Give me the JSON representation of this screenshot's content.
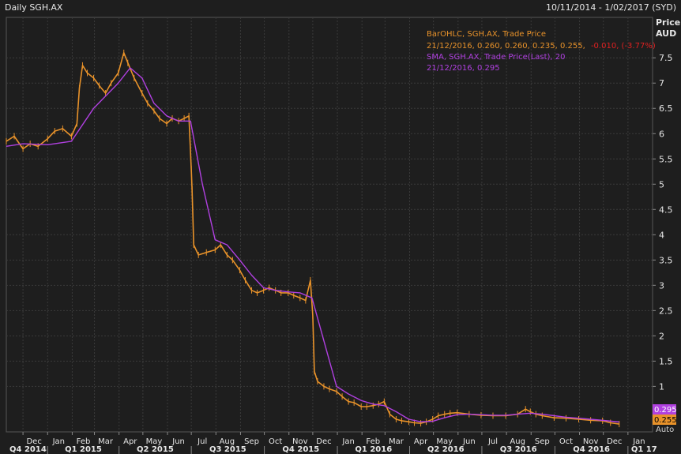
{
  "header": {
    "title": "Daily SGH.AX",
    "date_range": "10/11/2014 - 1/02/2017 (SYD)"
  },
  "axis": {
    "price_label": "Price",
    "unit_label": "AUD",
    "auto_label": "Auto"
  },
  "legend": {
    "ohlc_title": "BarOHLC, SGH.AX, Trade Price",
    "ohlc_values": "21/12/2016, 0.260, 0.260, 0.235, 0.255,",
    "ohlc_change": "-0.010, (-3.77%)",
    "sma_title": "SMA, SGH.AX, Trade Price(Last),  20",
    "sma_values": "21/12/2016, 0.295"
  },
  "colors": {
    "background": "#1e1e1e",
    "ohlc": "#e8922a",
    "sma": "#b040e0",
    "change_negative": "#e02020",
    "grid": "#3a3a3a",
    "text": "#e6e6e6"
  },
  "chart_data": {
    "type": "line",
    "title": "Daily SGH.AX",
    "ylabel": "Price AUD",
    "ylim": [
      0.1,
      8.3
    ],
    "y_ticks": [
      1,
      1.5,
      2,
      2.5,
      3,
      3.5,
      4,
      4.5,
      5,
      5.5,
      6,
      6.5,
      7,
      7.5
    ],
    "grid": true,
    "legend_position": "top-right",
    "month_ticks": [
      "Dec",
      "Jan",
      "Feb",
      "Mar",
      "Apr",
      "May",
      "Jun",
      "Jul",
      "Aug",
      "Sep",
      "Oct",
      "Nov",
      "Dec",
      "Jan",
      "Feb",
      "Mar",
      "Apr",
      "May",
      "Jun",
      "Jul",
      "Aug",
      "Sep",
      "Oct",
      "Nov",
      "Dec",
      "Jan"
    ],
    "quarter_ticks": [
      "Q4 2014",
      "Q1 2015",
      "Q2 2015",
      "Q3 2015",
      "Q4 2015",
      "Q1 2016",
      "Q2 2016",
      "Q3 2016",
      "Q4 2016",
      "Q1 17"
    ],
    "last_values": {
      "sma": "0.295",
      "price": "0.255"
    },
    "series": [
      {
        "name": "BarOHLC, SGH.AX, Trade Price",
        "style": "ohlc",
        "points": [
          [
            "2014-11-10",
            5.85
          ],
          [
            "2014-11-20",
            5.95
          ],
          [
            "2014-12-01",
            5.7
          ],
          [
            "2014-12-10",
            5.8
          ],
          [
            "2014-12-20",
            5.75
          ],
          [
            "2015-01-01",
            5.9
          ],
          [
            "2015-01-10",
            6.05
          ],
          [
            "2015-01-20",
            6.1
          ],
          [
            "2015-01-31",
            5.95
          ],
          [
            "2015-02-07",
            6.2
          ],
          [
            "2015-02-10",
            6.9
          ],
          [
            "2015-02-14",
            7.35
          ],
          [
            "2015-02-20",
            7.2
          ],
          [
            "2015-02-28",
            7.1
          ],
          [
            "2015-03-07",
            6.95
          ],
          [
            "2015-03-15",
            6.8
          ],
          [
            "2015-03-22",
            7.0
          ],
          [
            "2015-03-31",
            7.2
          ],
          [
            "2015-04-07",
            7.6
          ],
          [
            "2015-04-12",
            7.4
          ],
          [
            "2015-04-20",
            7.1
          ],
          [
            "2015-04-30",
            6.8
          ],
          [
            "2015-05-07",
            6.6
          ],
          [
            "2015-05-15",
            6.45
          ],
          [
            "2015-05-22",
            6.3
          ],
          [
            "2015-05-31",
            6.2
          ],
          [
            "2015-06-07",
            6.3
          ],
          [
            "2015-06-15",
            6.25
          ],
          [
            "2015-06-22",
            6.3
          ],
          [
            "2015-06-28",
            6.35
          ],
          [
            "2015-07-01",
            5.3
          ],
          [
            "2015-07-02",
            4.9
          ],
          [
            "2015-07-04",
            3.8
          ],
          [
            "2015-07-10",
            3.6
          ],
          [
            "2015-07-20",
            3.65
          ],
          [
            "2015-07-31",
            3.7
          ],
          [
            "2015-08-07",
            3.8
          ],
          [
            "2015-08-15",
            3.6
          ],
          [
            "2015-08-22",
            3.5
          ],
          [
            "2015-08-31",
            3.3
          ],
          [
            "2015-09-07",
            3.1
          ],
          [
            "2015-09-15",
            2.9
          ],
          [
            "2015-09-22",
            2.85
          ],
          [
            "2015-09-30",
            2.9
          ],
          [
            "2015-10-07",
            2.95
          ],
          [
            "2015-10-15",
            2.9
          ],
          [
            "2015-10-22",
            2.85
          ],
          [
            "2015-10-31",
            2.85
          ],
          [
            "2015-11-07",
            2.8
          ],
          [
            "2015-11-15",
            2.75
          ],
          [
            "2015-11-22",
            2.7
          ],
          [
            "2015-11-28",
            3.1
          ],
          [
            "2015-12-01",
            2.4
          ],
          [
            "2015-12-03",
            1.3
          ],
          [
            "2015-12-07",
            1.1
          ],
          [
            "2015-12-15",
            1.0
          ],
          [
            "2015-12-22",
            0.95
          ],
          [
            "2015-12-31",
            0.9
          ],
          [
            "2016-01-07",
            0.8
          ],
          [
            "2016-01-15",
            0.7
          ],
          [
            "2016-01-22",
            0.68
          ],
          [
            "2016-01-31",
            0.6
          ],
          [
            "2016-02-07",
            0.6
          ],
          [
            "2016-02-15",
            0.62
          ],
          [
            "2016-02-22",
            0.65
          ],
          [
            "2016-02-29",
            0.7
          ],
          [
            "2016-03-07",
            0.45
          ],
          [
            "2016-03-15",
            0.35
          ],
          [
            "2016-03-22",
            0.32
          ],
          [
            "2016-03-31",
            0.3
          ],
          [
            "2016-04-07",
            0.28
          ],
          [
            "2016-04-15",
            0.27
          ],
          [
            "2016-04-22",
            0.3
          ],
          [
            "2016-04-30",
            0.35
          ],
          [
            "2016-05-07",
            0.42
          ],
          [
            "2016-05-15",
            0.45
          ],
          [
            "2016-05-22",
            0.47
          ],
          [
            "2016-05-31",
            0.48
          ],
          [
            "2016-06-15",
            0.45
          ],
          [
            "2016-06-30",
            0.43
          ],
          [
            "2016-07-15",
            0.42
          ],
          [
            "2016-07-31",
            0.42
          ],
          [
            "2016-08-15",
            0.45
          ],
          [
            "2016-08-25",
            0.55
          ],
          [
            "2016-08-31",
            0.5
          ],
          [
            "2016-09-07",
            0.45
          ],
          [
            "2016-09-15",
            0.42
          ],
          [
            "2016-09-30",
            0.38
          ],
          [
            "2016-10-15",
            0.37
          ],
          [
            "2016-10-31",
            0.35
          ],
          [
            "2016-11-15",
            0.33
          ],
          [
            "2016-11-30",
            0.32
          ],
          [
            "2016-12-10",
            0.28
          ],
          [
            "2016-12-21",
            0.255
          ]
        ]
      },
      {
        "name": "SMA, SGH.AX, Trade Price(Last),  20",
        "style": "line",
        "points": [
          [
            "2014-11-10",
            5.75
          ],
          [
            "2014-12-01",
            5.8
          ],
          [
            "2015-01-01",
            5.78
          ],
          [
            "2015-01-31",
            5.85
          ],
          [
            "2015-02-28",
            6.5
          ],
          [
            "2015-03-31",
            7.0
          ],
          [
            "2015-04-15",
            7.3
          ],
          [
            "2015-04-30",
            7.1
          ],
          [
            "2015-05-15",
            6.6
          ],
          [
            "2015-05-31",
            6.35
          ],
          [
            "2015-06-15",
            6.25
          ],
          [
            "2015-06-30",
            6.25
          ],
          [
            "2015-07-15",
            5.0
          ],
          [
            "2015-07-31",
            3.9
          ],
          [
            "2015-08-15",
            3.8
          ],
          [
            "2015-08-31",
            3.5
          ],
          [
            "2015-09-15",
            3.2
          ],
          [
            "2015-09-30",
            2.95
          ],
          [
            "2015-10-15",
            2.9
          ],
          [
            "2015-10-31",
            2.87
          ],
          [
            "2015-11-15",
            2.85
          ],
          [
            "2015-11-30",
            2.75
          ],
          [
            "2015-12-15",
            1.9
          ],
          [
            "2015-12-31",
            1.0
          ],
          [
            "2016-01-15",
            0.85
          ],
          [
            "2016-01-31",
            0.72
          ],
          [
            "2016-02-15",
            0.65
          ],
          [
            "2016-02-29",
            0.62
          ],
          [
            "2016-03-15",
            0.5
          ],
          [
            "2016-03-31",
            0.35
          ],
          [
            "2016-04-15",
            0.3
          ],
          [
            "2016-04-30",
            0.31
          ],
          [
            "2016-05-15",
            0.38
          ],
          [
            "2016-05-31",
            0.44
          ],
          [
            "2016-06-15",
            0.45
          ],
          [
            "2016-06-30",
            0.44
          ],
          [
            "2016-07-15",
            0.43
          ],
          [
            "2016-07-31",
            0.43
          ],
          [
            "2016-08-15",
            0.45
          ],
          [
            "2016-08-31",
            0.47
          ],
          [
            "2016-09-15",
            0.45
          ],
          [
            "2016-09-30",
            0.42
          ],
          [
            "2016-10-15",
            0.39
          ],
          [
            "2016-10-31",
            0.37
          ],
          [
            "2016-11-15",
            0.35
          ],
          [
            "2016-11-30",
            0.33
          ],
          [
            "2016-12-21",
            0.295
          ]
        ]
      }
    ]
  }
}
